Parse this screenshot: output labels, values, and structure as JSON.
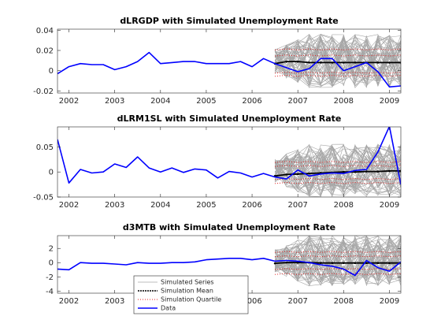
{
  "chart_data": [
    {
      "type": "line",
      "title": "dLRGDP with Simulated Unemployment Rate",
      "xlim": [
        2001.75,
        2009.25
      ],
      "ylim": [
        -0.022,
        0.041
      ],
      "xticks": [
        2002,
        2003,
        2004,
        2005,
        2006,
        2007,
        2008,
        2009
      ],
      "yticks": [
        -0.02,
        0,
        0.02,
        0.04
      ],
      "ytick_labels": [
        "-0.02",
        "0",
        "0.02",
        "0.04"
      ],
      "data_series": {
        "name": "Data",
        "color": "#0000ff",
        "x": [
          2001.75,
          2002.0,
          2002.25,
          2002.5,
          2002.75,
          2003.0,
          2003.25,
          2003.5,
          2003.75,
          2004.0,
          2004.25,
          2004.5,
          2004.75,
          2005.0,
          2005.25,
          2005.5,
          2005.75,
          2006.0,
          2006.25,
          2006.5,
          2006.75,
          2007.0,
          2007.25,
          2007.5,
          2007.75,
          2008.0,
          2008.25,
          2008.5,
          2008.75,
          2009.0,
          2009.25
        ],
        "y": [
          -0.003,
          0.004,
          0.007,
          0.006,
          0.006,
          0.001,
          0.004,
          0.009,
          0.018,
          0.007,
          0.008,
          0.009,
          0.009,
          0.007,
          0.007,
          0.007,
          0.009,
          0.004,
          0.012,
          0.007,
          0.003,
          -0.001,
          0.002,
          0.012,
          0.012,
          0.0,
          0.004,
          0.008,
          -0.001,
          -0.016,
          -0.015
        ]
      },
      "sim": {
        "start": 2006.5,
        "end": 2009.25,
        "mean": 0.008,
        "mean_x": [
          2006.5,
          2006.75,
          2007.0,
          2007.25,
          2007.5,
          2007.75,
          2008.0,
          2008.25,
          2008.5,
          2008.75,
          2009.0,
          2009.25
        ],
        "mean_y": [
          0.007,
          0.009,
          0.009,
          0.008,
          0.008,
          0.008,
          0.008,
          0.008,
          0.008,
          0.008,
          0.008,
          0.008
        ],
        "q_upper": 0.021,
        "q_upper2": 0.015,
        "q_lower": -0.002,
        "q_lower2": -0.005,
        "band_high": 0.037,
        "band_low": -0.016
      }
    },
    {
      "type": "line",
      "title": "dLRM1SL with Simulated Unemployment Rate",
      "xlim": [
        2001.75,
        2009.25
      ],
      "ylim": [
        -0.05,
        0.09
      ],
      "xticks": [
        2002,
        2003,
        2004,
        2005,
        2006,
        2007,
        2008,
        2009
      ],
      "yticks": [
        -0.05,
        0,
        0.05
      ],
      "ytick_labels": [
        "-0.05",
        "0",
        "0.05"
      ],
      "data_series": {
        "name": "Data",
        "color": "#0000ff",
        "x": [
          2001.75,
          2002.0,
          2002.25,
          2002.5,
          2002.75,
          2003.0,
          2003.25,
          2003.5,
          2003.75,
          2004.0,
          2004.25,
          2004.5,
          2004.75,
          2005.0,
          2005.25,
          2005.5,
          2005.75,
          2006.0,
          2006.25,
          2006.5,
          2006.75,
          2007.0,
          2007.25,
          2007.5,
          2007.75,
          2008.0,
          2008.25,
          2008.5,
          2008.75,
          2009.0,
          2009.25
        ],
        "y": [
          0.065,
          -0.022,
          0.005,
          -0.002,
          0.0,
          0.016,
          0.009,
          0.03,
          0.008,
          0.0,
          0.008,
          -0.001,
          0.006,
          0.004,
          -0.012,
          0.001,
          -0.002,
          -0.01,
          -0.003,
          -0.01,
          -0.014,
          0.004,
          -0.008,
          -0.004,
          -0.002,
          -0.003,
          0.003,
          0.005,
          0.04,
          0.091,
          -0.025
        ]
      },
      "sim": {
        "start": 2006.5,
        "end": 2009.25,
        "mean_x": [
          2006.5,
          2006.75,
          2007.0,
          2007.25,
          2007.5,
          2007.75,
          2008.0,
          2008.25,
          2008.5,
          2008.75,
          2009.0,
          2009.25
        ],
        "mean_y": [
          -0.008,
          -0.005,
          -0.004,
          -0.003,
          -0.002,
          -0.001,
          0.0,
          0.0,
          0.001,
          0.001,
          0.002,
          0.002
        ],
        "q_upper": 0.02,
        "q_upper2": 0.012,
        "q_lower": -0.014,
        "q_lower2": -0.022,
        "band_high": 0.06,
        "band_low": -0.045
      }
    },
    {
      "type": "line",
      "title": "d3MTB with Simulated Unemployment Rate",
      "xlim": [
        2001.75,
        2009.25
      ],
      "ylim": [
        -4.3,
        3.8
      ],
      "xticks": [
        2002,
        2003,
        2004,
        2005,
        2006,
        2007,
        2008,
        2009
      ],
      "yticks": [
        -4,
        -2,
        0,
        2
      ],
      "ytick_labels": [
        "-4",
        "-2",
        "0",
        "2"
      ],
      "data_series": {
        "name": "Data",
        "color": "#0000ff",
        "x": [
          2001.75,
          2002.0,
          2002.25,
          2002.5,
          2002.75,
          2003.0,
          2003.25,
          2003.5,
          2003.75,
          2004.0,
          2004.25,
          2004.5,
          2004.75,
          2005.0,
          2005.25,
          2005.5,
          2005.75,
          2006.0,
          2006.25,
          2006.5,
          2006.75,
          2007.0,
          2007.25,
          2007.5,
          2007.75,
          2008.0,
          2008.25,
          2008.5,
          2008.75,
          2009.0,
          2009.25
        ],
        "y": [
          -0.9,
          -1.0,
          0.0,
          -0.1,
          -0.1,
          -0.2,
          -0.3,
          0.0,
          -0.1,
          -0.1,
          0.0,
          0.0,
          0.1,
          0.4,
          0.5,
          0.6,
          0.6,
          0.4,
          0.6,
          0.2,
          0.3,
          0.2,
          0.0,
          -0.3,
          -0.5,
          -0.9,
          -1.8,
          0.3,
          -0.7,
          -1.2,
          0.1
        ]
      },
      "sim": {
        "start": 2006.5,
        "end": 2009.25,
        "mean_x": [
          2006.5,
          2006.75,
          2007.0,
          2007.25,
          2007.5,
          2007.75,
          2008.0,
          2008.25,
          2008.5,
          2008.75,
          2009.0,
          2009.25
        ],
        "mean_y": [
          -0.1,
          0.0,
          0.0,
          0.0,
          -0.05,
          -0.05,
          -0.05,
          -0.05,
          -0.05,
          -0.05,
          -0.05,
          -0.05
        ],
        "q_upper": 1.5,
        "q_upper2": 0.9,
        "q_lower": -0.9,
        "q_lower2": -1.6,
        "band_high": 3.4,
        "band_low": -3.8
      }
    }
  ],
  "legend": {
    "position": "bottom-left",
    "entries": [
      {
        "label": "Simulated Series",
        "color": "#a6a6a6",
        "style": "thin"
      },
      {
        "label": "Simulation Mean",
        "color": "#000000",
        "style": "thick-dot"
      },
      {
        "label": "Simulation Quartile",
        "color": "#e02020",
        "style": "dotted"
      },
      {
        "label": "Data",
        "color": "#0000ff",
        "style": "solid"
      }
    ]
  },
  "colors": {
    "data": "#0000ff",
    "mean": "#000000",
    "quartile": "#e02020",
    "sims": "#a6a6a6"
  }
}
